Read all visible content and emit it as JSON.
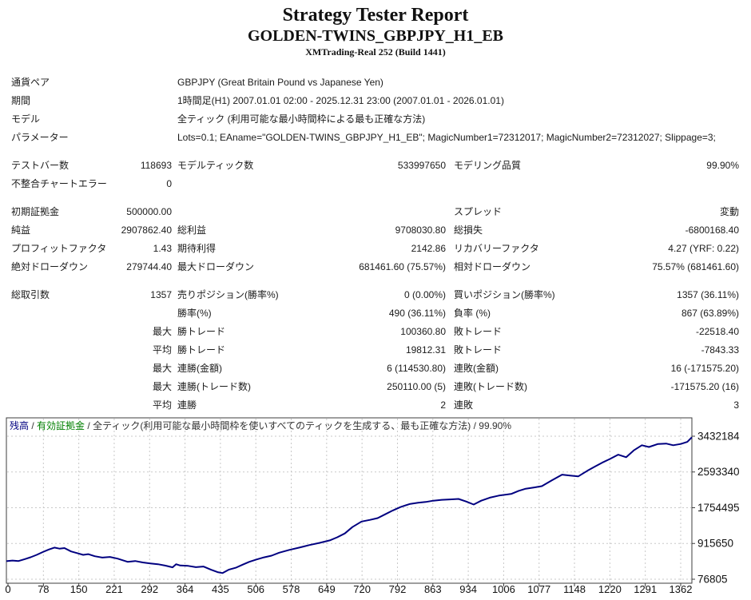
{
  "header": {
    "title": "Strategy Tester Report",
    "subtitle": "GOLDEN-TWINS_GBPJPY_H1_EB",
    "build": "XMTrading-Real 252 (Build 1441)"
  },
  "report": {
    "sections": [
      {
        "rows": [
          [
            "通貨ペア",
            "GBPJPY (Great Britain Pound vs Japanese Yen)"
          ],
          [
            "期間",
            "1時間足(H1) 2007.01.01 02:00 - 2025.12.31 23:00 (2007.01.01 - 2026.01.01)"
          ],
          [
            "モデル",
            "全ティック (利用可能な最小時間枠による最も正確な方法)"
          ],
          [
            "パラメーター",
            "Lots=0.1; EAname=\"GOLDEN-TWINS_GBPJPY_H1_EB\"; MagicNumber1=72312017; MagicNumber2=72312027; Slippage=3;"
          ]
        ]
      },
      {
        "rows": [
          [
            "テストバー数",
            "118693",
            "モデルティック数",
            "533997650",
            "モデリング品質",
            "99.90%"
          ],
          [
            "不整合チャートエラー",
            "0",
            "",
            "",
            "",
            ""
          ]
        ]
      },
      {
        "rows": [
          [
            "初期証拠金",
            "500000.00",
            "",
            "",
            "スプレッド",
            "変動"
          ],
          [
            "純益",
            "2907862.40",
            "総利益",
            "9708030.80",
            "総損失",
            "-6800168.40"
          ],
          [
            "プロフィットファクタ",
            "1.43",
            "期待利得",
            "2142.86",
            "リカバリーファクタ",
            "4.27 (YRF: 0.22)"
          ],
          [
            "絶対ドローダウン",
            "279744.40",
            "最大ドローダウン",
            "681461.60 (75.57%)",
            "相対ドローダウン",
            "75.57% (681461.60)"
          ]
        ]
      },
      {
        "rows": [
          [
            "総取引数",
            "1357",
            "売りポジション(勝率%)",
            "0 (0.00%)",
            "買いポジション(勝率%)",
            "1357 (36.11%)"
          ],
          [
            "",
            "",
            "勝率(%)",
            "490 (36.11%)",
            "負率 (%)",
            "867 (63.89%)"
          ],
          [
            "",
            "最大",
            "勝トレード",
            "100360.80",
            "敗トレード",
            "-22518.40"
          ],
          [
            "",
            "平均",
            "勝トレード",
            "19812.31",
            "敗トレード",
            "-7843.33"
          ],
          [
            "",
            "最大",
            "連勝(金額)",
            "6 (114530.80)",
            "連敗(金額)",
            "16 (-171575.20)"
          ],
          [
            "",
            "最大",
            "連勝(トレード数)",
            "250110.00 (5)",
            "連敗(トレード数)",
            "-171575.20 (16)"
          ],
          [
            "",
            "平均",
            "連勝",
            "2",
            "連敗",
            "3"
          ]
        ]
      }
    ]
  },
  "chart_data": {
    "type": "line",
    "title": "",
    "xlabel": "",
    "ylabel": "",
    "legend": {
      "balance": "残高",
      "sep": " / ",
      "equity": "有効証拠金",
      "model": "全ティック(利用可能な最小時間枠を使いすべてのティックを生成する、最も正確な方法) / 99.90%"
    },
    "colors": {
      "balance_line": "#000080",
      "equity_label": "#008000",
      "grid": "#c8c8c8",
      "border": "#3c3c3c",
      "axis_text": "#111111"
    },
    "grid": "dashed",
    "legend_position": "top-left-inside",
    "x_range": [
      0,
      1362
    ],
    "y_range": [
      76805,
      3432184
    ],
    "y_ticks": [
      3432184,
      2593340,
      1754495,
      915650,
      76805
    ],
    "x_ticks": [
      0,
      78,
      150,
      221,
      292,
      364,
      435,
      506,
      578,
      649,
      720,
      792,
      863,
      934,
      1006,
      1077,
      1148,
      1220,
      1291,
      1362
    ],
    "series": [
      {
        "name": "残高",
        "points": [
          [
            0,
            500000
          ],
          [
            12,
            516000
          ],
          [
            24,
            505000
          ],
          [
            36,
            548000
          ],
          [
            48,
            592000
          ],
          [
            60,
            648000
          ],
          [
            72,
            715000
          ],
          [
            84,
            775000
          ],
          [
            95,
            820000
          ],
          [
            105,
            795000
          ],
          [
            115,
            808000
          ],
          [
            128,
            730000
          ],
          [
            140,
            690000
          ],
          [
            152,
            648000
          ],
          [
            162,
            665000
          ],
          [
            175,
            616000
          ],
          [
            190,
            585000
          ],
          [
            205,
            600000
          ],
          [
            220,
            560000
          ],
          [
            240,
            486000
          ],
          [
            255,
            505000
          ],
          [
            270,
            470000
          ],
          [
            285,
            448000
          ],
          [
            300,
            430000
          ],
          [
            315,
            395000
          ],
          [
            329,
            356000
          ],
          [
            336,
            430000
          ],
          [
            344,
            400000
          ],
          [
            360,
            390000
          ],
          [
            375,
            360000
          ],
          [
            390,
            375000
          ],
          [
            405,
            300000
          ],
          [
            418,
            244000
          ],
          [
            428,
            220256
          ],
          [
            440,
            300000
          ],
          [
            455,
            350000
          ],
          [
            468,
            420000
          ],
          [
            481,
            486000
          ],
          [
            495,
            540000
          ],
          [
            510,
            590000
          ],
          [
            525,
            630000
          ],
          [
            540,
            700000
          ],
          [
            560,
            765000
          ],
          [
            580,
            820000
          ],
          [
            600,
            880000
          ],
          [
            620,
            930000
          ],
          [
            640,
            988000
          ],
          [
            655,
            1060000
          ],
          [
            670,
            1150000
          ],
          [
            685,
            1300000
          ],
          [
            703,
            1430000
          ],
          [
            720,
            1470000
          ],
          [
            735,
            1510000
          ],
          [
            750,
            1600000
          ],
          [
            765,
            1690000
          ],
          [
            780,
            1770000
          ],
          [
            798,
            1840000
          ],
          [
            815,
            1870000
          ],
          [
            830,
            1890000
          ],
          [
            845,
            1920000
          ],
          [
            862,
            1940000
          ],
          [
            878,
            1950000
          ],
          [
            895,
            1960000
          ],
          [
            910,
            1900000
          ],
          [
            925,
            1830000
          ],
          [
            940,
            1920000
          ],
          [
            957,
            1990000
          ],
          [
            975,
            2040000
          ],
          [
            1000,
            2080000
          ],
          [
            1014,
            2150000
          ],
          [
            1028,
            2200000
          ],
          [
            1045,
            2230000
          ],
          [
            1060,
            2260000
          ],
          [
            1080,
            2400000
          ],
          [
            1100,
            2530000
          ],
          [
            1116,
            2510000
          ],
          [
            1132,
            2490000
          ],
          [
            1150,
            2620000
          ],
          [
            1165,
            2720000
          ],
          [
            1179,
            2810000
          ],
          [
            1195,
            2900000
          ],
          [
            1211,
            3000000
          ],
          [
            1227,
            2940000
          ],
          [
            1242,
            3100000
          ],
          [
            1258,
            3220000
          ],
          [
            1272,
            3180000
          ],
          [
            1290,
            3250000
          ],
          [
            1306,
            3260000
          ],
          [
            1320,
            3220000
          ],
          [
            1335,
            3250000
          ],
          [
            1348,
            3300000
          ],
          [
            1357,
            3408000
          ]
        ]
      }
    ]
  }
}
